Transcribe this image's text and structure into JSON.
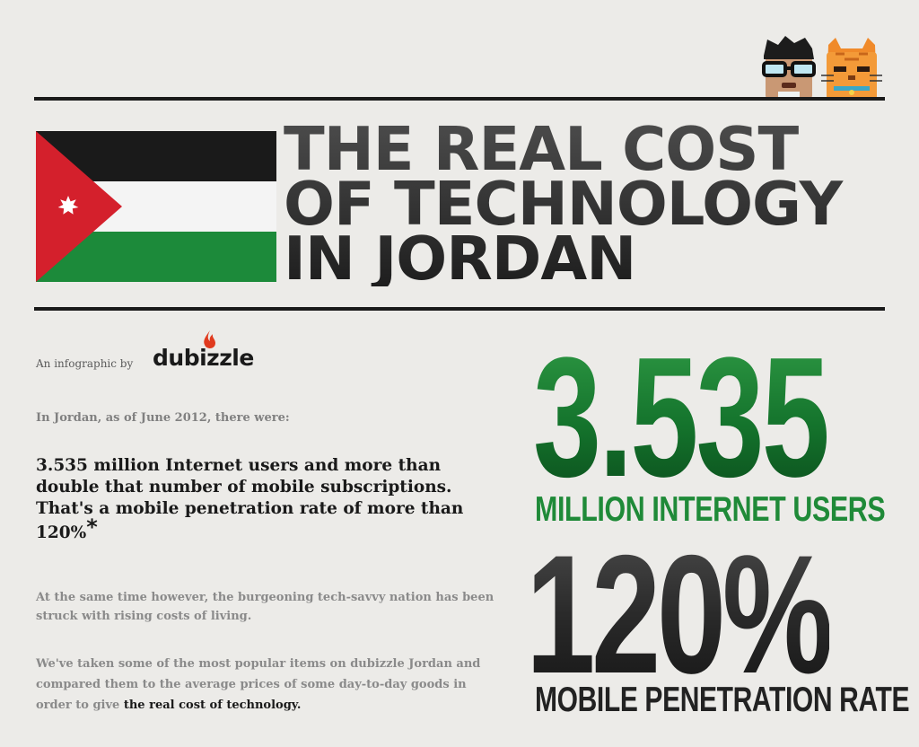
{
  "title": {
    "line1": "THE REAL COST",
    "line2": "OF TECHNOLOGY",
    "line3": "IN JORDAN"
  },
  "byline": {
    "text": "An infographic by",
    "brand": "dubizzle"
  },
  "intro": "In Jordan, as of June 2012, there were:",
  "lead": {
    "text": "3.535 million Internet users and more than double that number of mobile subscriptions. That's a mobile penetration rate of more than 120%",
    "asterisk": "*"
  },
  "para1": "At the same time however, the burgeoning tech-savvy nation has been struck with rising costs of living.",
  "para2": {
    "text": "We've taken some of the most popular items on dubizzle Jordan and compared them to the average prices of some day-to-day goods in order to give ",
    "emphasis": "the real cost of technology."
  },
  "stats": [
    {
      "value": "3.535",
      "label": "MILLION INTERNET USERS"
    },
    {
      "value": "120%",
      "label": "MOBILE PENETRATION RATE"
    }
  ],
  "colors": {
    "background": "#ecebe8",
    "flag_black": "#1a1a1a",
    "flag_white": "#f4f4f4",
    "flag_green": "#1c8a3a",
    "flag_red": "#d4202c",
    "stat_green": "#1f8a38",
    "brand_flame": "#e03a1e"
  },
  "icons": [
    "jordan-flag",
    "nerd-character-icon",
    "cat-character-icon",
    "dubizzle-flame-icon"
  ]
}
